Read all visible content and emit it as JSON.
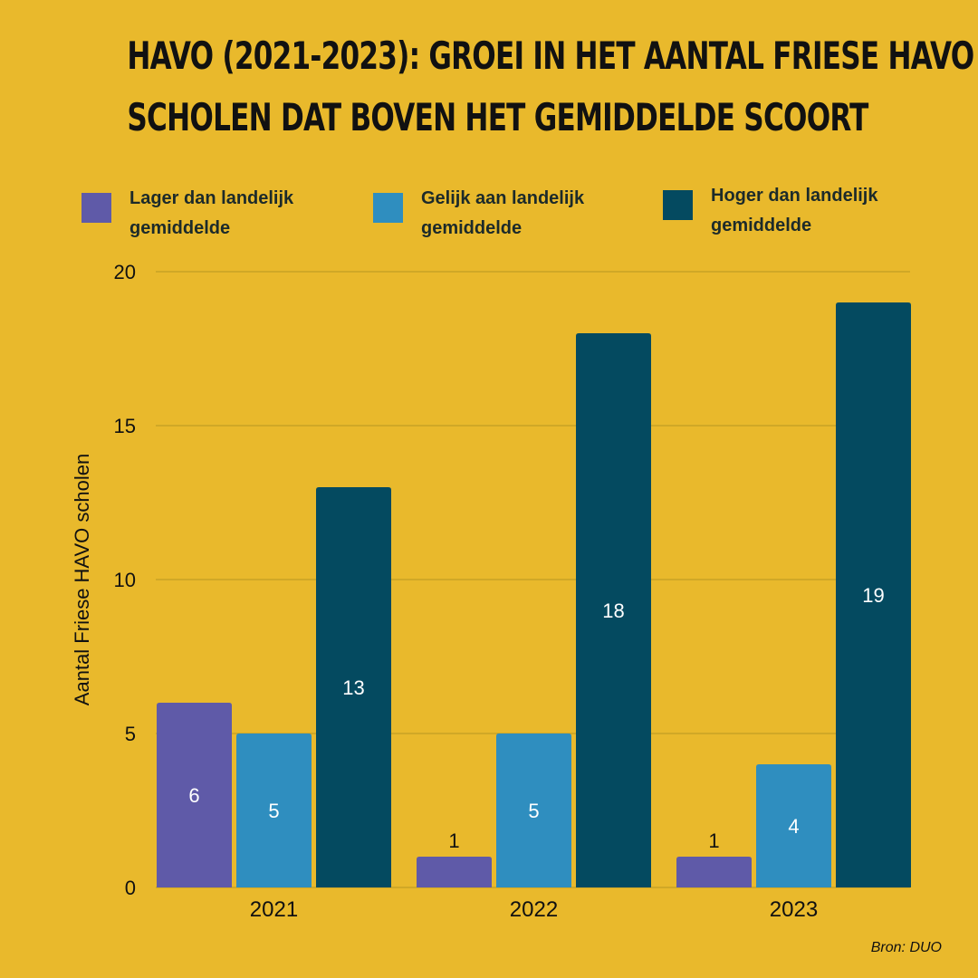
{
  "title": {
    "line1": "HAVO (2021-2023): GROEI IN HET AANTAL FRIESE HAVO",
    "line2": "SCHOLEN DAT BOVEN HET GEMIDDELDE SCOORT"
  },
  "source": "Bron: DUO",
  "colors": {
    "background": "#e9b92c",
    "lager": "#5f5aa8",
    "gelijk": "#2f8ebf",
    "hoger": "#044a60",
    "grid": "#b89622"
  },
  "chart_data": {
    "type": "bar",
    "title": "HAVO (2021-2023): GROEI IN HET AANTAL FRIESE HAVO SCHOLEN DAT BOVEN HET GEMIDDELDE SCOORT",
    "categories": [
      "2021",
      "2022",
      "2023"
    ],
    "series": [
      {
        "name": "Lager dan landelijk gemiddelde",
        "color": "#5f5aa8",
        "values": [
          6,
          1,
          1
        ]
      },
      {
        "name": "Gelijk aan landelijk gemiddelde",
        "color": "#2f8ebf",
        "values": [
          5,
          5,
          4
        ]
      },
      {
        "name": "Hoger dan landelijk gemiddelde",
        "color": "#044a60",
        "values": [
          13,
          18,
          19
        ]
      }
    ],
    "xlabel": "",
    "ylabel": "Aantal Friese HAVO scholen",
    "ylim": [
      0,
      20
    ],
    "yticks": [
      "0",
      "5",
      "10",
      "15",
      "20"
    ],
    "grid": true,
    "legend": "top"
  }
}
